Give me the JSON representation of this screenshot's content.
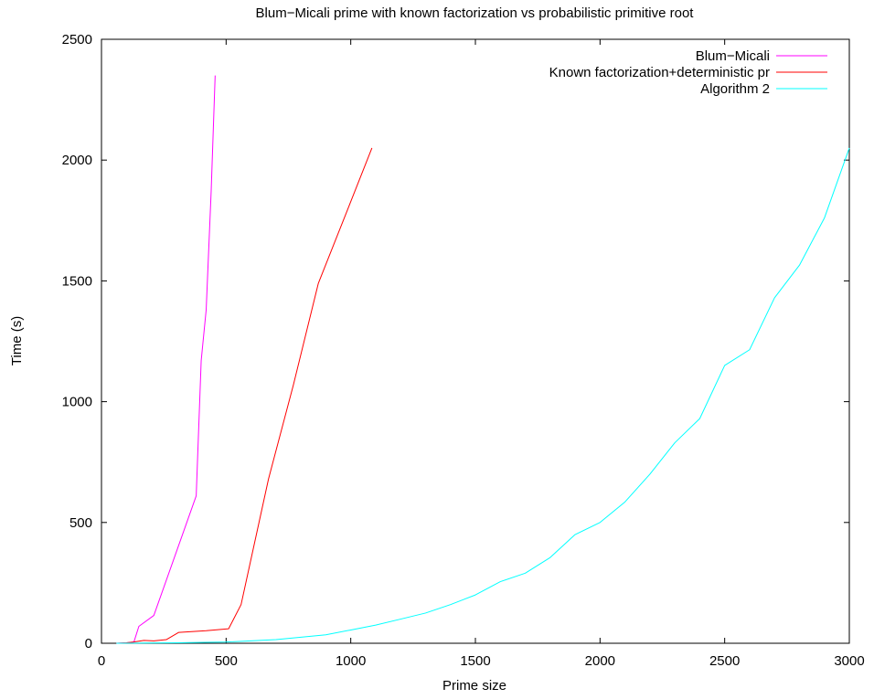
{
  "chart_data": {
    "type": "line",
    "title": "Blum−Micali prime with known factorization vs probabilistic primitive root",
    "xlabel": "Prime size",
    "ylabel": "Time (s)",
    "xlim": [
      0,
      3000
    ],
    "ylim": [
      0,
      2500
    ],
    "xticks": [
      0,
      500,
      1000,
      1500,
      2000,
      2500,
      3000
    ],
    "yticks": [
      0,
      500,
      1000,
      1500,
      2000,
      2500
    ],
    "xtick_labels": [
      "0",
      "500",
      "1000",
      "1500",
      "2000",
      "2500",
      "3000"
    ],
    "ytick_labels": [
      "0",
      "500",
      "1000",
      "1500",
      "2000",
      "2500"
    ],
    "grid": false,
    "legend_position": "top-right",
    "series": [
      {
        "name": "Blum−Micali",
        "color": "#ff00ff",
        "x": [
          60,
          100,
          130,
          150,
          210,
          380,
          400,
          420,
          440,
          456
        ],
        "y": [
          0,
          2,
          5,
          70,
          115,
          610,
          1170,
          1380,
          1870,
          2350
        ]
      },
      {
        "name": "Known factorization+deterministic pr",
        "color": "#ff0000",
        "x": [
          60,
          100,
          130,
          170,
          210,
          260,
          310,
          420,
          510,
          560,
          670,
          770,
          870,
          970,
          1085
        ],
        "y": [
          0,
          2,
          5,
          12,
          10,
          15,
          45,
          52,
          60,
          160,
          680,
          1070,
          1490,
          1750,
          2050
        ]
      },
      {
        "name": "Algorithm 2",
        "color": "#00ffff",
        "x": [
          60,
          300,
          500,
          700,
          900,
          1000,
          1100,
          1200,
          1300,
          1400,
          1500,
          1600,
          1700,
          1800,
          1900,
          2000,
          2100,
          2200,
          2300,
          2400,
          2500,
          2600,
          2700,
          2800,
          2900,
          3000
        ],
        "y": [
          0,
          2,
          5,
          15,
          35,
          55,
          75,
          100,
          125,
          160,
          200,
          255,
          290,
          355,
          450,
          500,
          585,
          700,
          830,
          930,
          1150,
          1215,
          1430,
          1565,
          1760,
          2050
        ]
      }
    ]
  }
}
